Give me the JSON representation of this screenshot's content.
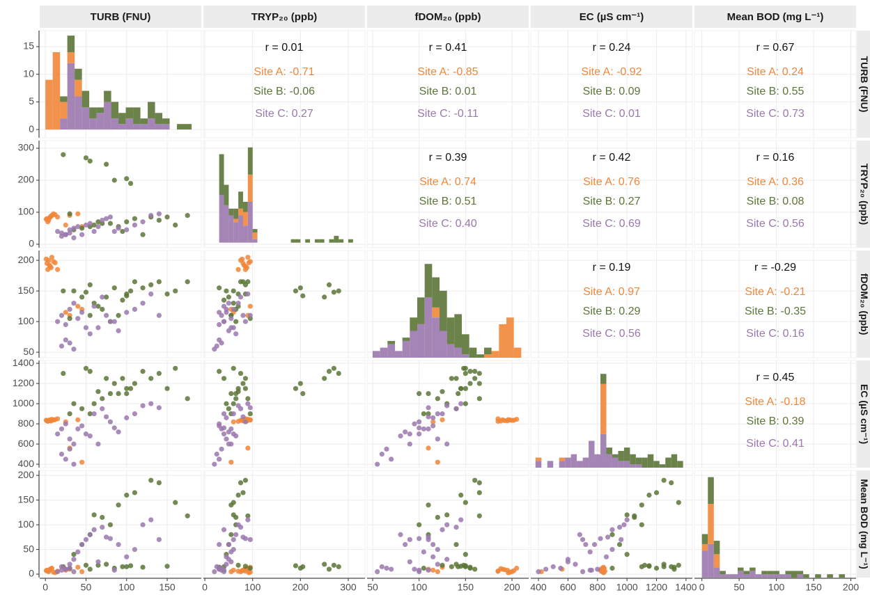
{
  "chart_data": {
    "type": "scatter_matrix",
    "variables": [
      {
        "name": "TURB (FNU)",
        "xlim": [
          -7,
          192
        ],
        "xticks": [
          0,
          50,
          100,
          150
        ]
      },
      {
        "name": "TRYP₂₀ (ppb)",
        "xlim": [
          -3,
          335
        ],
        "xticks": [
          0,
          100,
          200,
          300
        ],
        "ylim": [
          -11,
          324
        ],
        "yticks": [
          0,
          100,
          200,
          300
        ]
      },
      {
        "name": "fDOM₂₀ (ppb)",
        "xlim": [
          44,
          218
        ],
        "xticks": [
          50,
          100,
          150,
          200
        ],
        "ylim": [
          41,
          216
        ],
        "yticks": [
          50,
          100,
          150,
          200
        ]
      },
      {
        "name": "EC (µS cm⁻¹)",
        "xlim": [
          348,
          1443
        ],
        "xticks": [
          400,
          600,
          800,
          1000,
          1200,
          1400
        ],
        "ylim": [
          366,
          1428
        ],
        "yticks": [
          400,
          600,
          800,
          1000,
          1200,
          1400
        ]
      },
      {
        "name": "Mean BOD (mg L⁻¹)",
        "xlim": [
          -10,
          207
        ],
        "xticks": [
          0,
          50,
          100,
          150,
          200
        ],
        "ylim": [
          -7,
          210
        ],
        "yticks": [
          0,
          50,
          100,
          150,
          200
        ]
      }
    ],
    "series": [
      {
        "color": "#f0863a",
        "values": [
          [
            2,
            80,
            195,
            830,
            8
          ],
          [
            4,
            75,
            200,
            835,
            5
          ],
          [
            6,
            85,
            190,
            840,
            10
          ],
          [
            8,
            90,
            205,
            845,
            12
          ],
          [
            3,
            70,
            185,
            825,
            6
          ],
          [
            10,
            95,
            198,
            838,
            4
          ],
          [
            5,
            82,
            192,
            832,
            9
          ],
          [
            7,
            88,
            188,
            828,
            11
          ],
          [
            1,
            78,
            202,
            836,
            7
          ],
          [
            12,
            92,
            196,
            842,
            3
          ],
          [
            45,
            55,
            120,
            420,
            5
          ],
          [
            30,
            90,
            110,
            560,
            10
          ],
          [
            25,
            60,
            115,
            820,
            8
          ],
          [
            40,
            95,
            125,
            840,
            14
          ],
          [
            15,
            85,
            185,
            850,
            6
          ]
        ]
      },
      {
        "color": "#5b7537",
        "values": [
          [
            22,
            280,
            150,
            1300,
            15
          ],
          [
            50,
            270,
            148,
            1350,
            18
          ],
          [
            55,
            260,
            160,
            1320,
            10
          ],
          [
            75,
            250,
            140,
            1250,
            20
          ],
          [
            85,
            200,
            155,
            1200,
            12
          ],
          [
            100,
            205,
            142,
            1100,
            15
          ],
          [
            105,
            190,
            150,
            1150,
            17
          ],
          [
            60,
            60,
            130,
            1000,
            120
          ],
          [
            70,
            65,
            120,
            1050,
            115
          ],
          [
            90,
            55,
            110,
            1100,
            140
          ],
          [
            100,
            70,
            145,
            1150,
            160
          ],
          [
            110,
            80,
            165,
            1200,
            165
          ],
          [
            130,
            85,
            160,
            1250,
            190
          ],
          [
            140,
            75,
            165,
            1300,
            185
          ],
          [
            160,
            60,
            150,
            1350,
            145
          ],
          [
            175,
            90,
            165,
            1050,
            118
          ],
          [
            35,
            45,
            150,
            1000,
            40
          ],
          [
            45,
            50,
            140,
            950,
            60
          ],
          [
            55,
            55,
            110,
            900,
            80
          ],
          [
            80,
            65,
            100,
            1100,
            100
          ],
          [
            95,
            40,
            135,
            1250,
            15
          ],
          [
            120,
            30,
            155,
            1320,
            14
          ],
          [
            150,
            85,
            145,
            1150,
            16
          ],
          [
            30,
            95,
            105,
            900,
            12
          ],
          [
            65,
            70,
            125,
            1120,
            18
          ]
        ]
      },
      {
        "color": "#9a78ad",
        "values": [
          [
            15,
            40,
            100,
            700,
            5
          ],
          [
            20,
            35,
            110,
            750,
            8
          ],
          [
            25,
            30,
            95,
            800,
            10
          ],
          [
            30,
            45,
            120,
            650,
            20
          ],
          [
            35,
            50,
            130,
            600,
            30
          ],
          [
            40,
            55,
            105,
            750,
            45
          ],
          [
            45,
            30,
            115,
            780,
            60
          ],
          [
            50,
            60,
            90,
            700,
            70
          ],
          [
            55,
            65,
            80,
            680,
            80
          ],
          [
            60,
            40,
            125,
            900,
            90
          ],
          [
            70,
            75,
            140,
            950,
            95
          ],
          [
            75,
            80,
            110,
            870,
            75
          ],
          [
            80,
            85,
            100,
            820,
            72
          ],
          [
            90,
            50,
            85,
            720,
            60
          ],
          [
            100,
            45,
            115,
            860,
            35
          ],
          [
            110,
            60,
            120,
            900,
            50
          ],
          [
            120,
            70,
            130,
            980,
            100
          ],
          [
            130,
            90,
            145,
            1000,
            110
          ],
          [
            140,
            95,
            110,
            960,
            70
          ],
          [
            20,
            25,
            60,
            500,
            15
          ],
          [
            25,
            30,
            70,
            450,
            10
          ],
          [
            35,
            20,
            55,
            400,
            5
          ],
          [
            30,
            35,
            65,
            550,
            12
          ],
          [
            65,
            55,
            90,
            600,
            25
          ],
          [
            85,
            40,
            100,
            760,
            8
          ]
        ]
      }
    ],
    "histograms": [
      {
        "bins": [
          0,
          9,
          18,
          27,
          36,
          45,
          54,
          63,
          72,
          81,
          90,
          99,
          108,
          117,
          126,
          135,
          144,
          153,
          162,
          171,
          180
        ],
        "ylim": [
          -1.5,
          17.9
        ],
        "yticks": [
          0,
          5,
          10,
          15
        ],
        "counts": [
          [
            9,
            14,
            3,
            2,
            3,
            0,
            0,
            0,
            0,
            0,
            0,
            0,
            0,
            0,
            0,
            0,
            0,
            0,
            0,
            0
          ],
          [
            0,
            0,
            1,
            3,
            2,
            3,
            2,
            1,
            2,
            3,
            2,
            2,
            3,
            1,
            3,
            2,
            1,
            0,
            1,
            1
          ],
          [
            0,
            0,
            2,
            12,
            6,
            4,
            2,
            3,
            5,
            2,
            1,
            2,
            1,
            1,
            2,
            1,
            1,
            0,
            0,
            0
          ]
        ]
      },
      {
        "bins": [
          20,
          30,
          40,
          50,
          60,
          70,
          80,
          90,
          100,
          110,
          120,
          130,
          140,
          150,
          160,
          170,
          180,
          190,
          200,
          210,
          220,
          230,
          240,
          250,
          260,
          270,
          280,
          290,
          300,
          310,
          320
        ],
        "ylim": [
          -1.5,
          30
        ],
        "counts": [
          [
            0,
            0,
            0,
            0,
            1,
            2,
            4,
            8,
            2,
            0,
            0,
            0,
            0,
            0,
            0,
            0,
            0,
            0,
            0,
            0,
            0,
            0,
            0,
            0,
            0,
            0,
            0,
            0,
            0,
            0
          ],
          [
            0,
            12,
            6,
            2,
            3,
            5,
            3,
            8,
            1,
            0,
            0,
            0,
            0,
            0,
            0,
            0,
            1,
            1,
            0,
            1,
            0,
            1,
            1,
            0,
            1,
            2,
            1,
            0,
            1,
            0
          ],
          [
            0,
            14,
            11,
            8,
            6,
            8,
            5,
            12,
            1,
            0,
            0,
            0,
            0,
            0,
            0,
            0,
            0,
            0,
            0,
            0,
            0,
            0,
            0,
            0,
            0,
            0,
            0,
            0,
            0,
            0
          ]
        ]
      },
      {
        "bins": [
          50,
          58,
          66,
          74,
          82,
          90,
          98,
          106,
          114,
          122,
          130,
          138,
          146,
          154,
          162,
          170,
          178,
          186,
          194,
          202,
          210
        ],
        "ylim": [
          0,
          32
        ],
        "counts": [
          [
            0,
            0,
            0,
            0,
            0,
            0,
            0,
            0,
            3,
            0,
            0,
            0,
            0,
            0,
            0,
            1,
            2,
            10,
            12,
            3
          ],
          [
            0,
            0,
            1,
            0,
            1,
            4,
            8,
            10,
            9,
            12,
            8,
            10,
            6,
            3,
            1,
            2,
            0,
            0,
            0,
            0
          ],
          [
            2,
            3,
            4,
            2,
            5,
            8,
            10,
            18,
            12,
            8,
            4,
            3,
            1,
            0,
            0,
            0,
            0,
            0,
            0,
            0
          ]
        ]
      },
      {
        "bins": [
          380,
          420,
          460,
          500,
          540,
          580,
          620,
          660,
          700,
          740,
          780,
          820,
          860,
          900,
          940,
          980,
          1020,
          1060,
          1100,
          1140,
          1180,
          1220,
          1260,
          1300,
          1340,
          1380
        ],
        "ylim": [
          0,
          32
        ],
        "counts": [
          [
            1,
            0,
            0,
            0,
            1,
            0,
            0,
            0,
            0,
            0,
            0,
            15,
            0,
            0,
            0,
            0,
            0,
            0,
            0,
            0,
            0,
            0,
            0,
            0,
            0
          ],
          [
            0,
            0,
            0,
            0,
            0,
            0,
            0,
            0,
            0,
            0,
            0,
            3,
            2,
            1,
            3,
            4,
            3,
            2,
            3,
            4,
            2,
            1,
            3,
            4,
            2
          ],
          [
            2,
            0,
            2,
            0,
            2,
            3,
            4,
            2,
            3,
            8,
            4,
            10,
            4,
            3,
            2,
            2,
            1,
            1,
            0,
            0,
            0,
            0,
            0,
            0,
            0
          ]
        ]
      },
      {
        "bins": [
          0,
          8,
          16,
          24,
          32,
          40,
          48,
          56,
          64,
          72,
          80,
          88,
          96,
          104,
          112,
          120,
          128,
          136,
          144,
          152,
          160,
          168,
          176,
          184,
          192,
          200
        ],
        "ylim": [
          0,
          32
        ],
        "counts": [
          [
            2,
            12,
            4,
            0,
            0,
            0,
            0,
            0,
            0,
            0,
            0,
            0,
            0,
            0,
            0,
            0,
            0,
            0,
            0,
            0,
            0,
            0,
            0,
            0,
            0
          ],
          [
            3,
            8,
            4,
            1,
            0,
            0,
            1,
            1,
            1,
            0,
            1,
            1,
            1,
            0,
            1,
            2,
            1,
            1,
            0,
            1,
            0,
            1,
            0,
            1,
            0
          ],
          [
            8,
            10,
            3,
            1,
            1,
            1,
            2,
            1,
            2,
            1,
            1,
            1,
            1,
            1,
            1,
            0,
            1,
            0,
            0,
            0,
            0,
            0,
            0,
            0,
            0
          ]
        ]
      }
    ],
    "correlations": [
      {
        "overall": "r = 0.01",
        "sites": [
          "Site A: -0.71",
          "Site B: -0.06",
          "Site C: 0.27"
        ]
      },
      {
        "overall": "r = 0.41",
        "sites": [
          "Site A: -0.85",
          "Site B: 0.01",
          "Site C: -0.11"
        ]
      },
      {
        "overall": "r = 0.24",
        "sites": [
          "Site A: -0.92",
          "Site B: 0.09",
          "Site C: 0.01"
        ]
      },
      {
        "overall": "r = 0.67",
        "sites": [
          "Site A: 0.24",
          "Site B: 0.55",
          "Site C: 0.73"
        ]
      },
      {
        "overall": "r = 0.39",
        "sites": [
          "Site A: 0.74",
          "Site B: 0.51",
          "Site C: 0.40"
        ]
      },
      {
        "overall": "r = 0.42",
        "sites": [
          "Site A: 0.76",
          "Site B: 0.27",
          "Site C: 0.69"
        ]
      },
      {
        "overall": "r = 0.16",
        "sites": [
          "Site A: 0.36",
          "Site B: 0.08",
          "Site C: 0.56"
        ]
      },
      {
        "overall": "r = 0.19",
        "sites": [
          "Site A: 0.97",
          "Site B: 0.29",
          "Site C: 0.56"
        ]
      },
      {
        "overall": "r = -0.29",
        "sites": [
          "Site A: -0.21",
          "Site B: -0.35",
          "Site C: 0.16"
        ]
      },
      {
        "overall": "r = 0.45",
        "sites": [
          "Site A: -0.18",
          "Site B: 0.39",
          "Site C: 0.41"
        ]
      }
    ]
  }
}
